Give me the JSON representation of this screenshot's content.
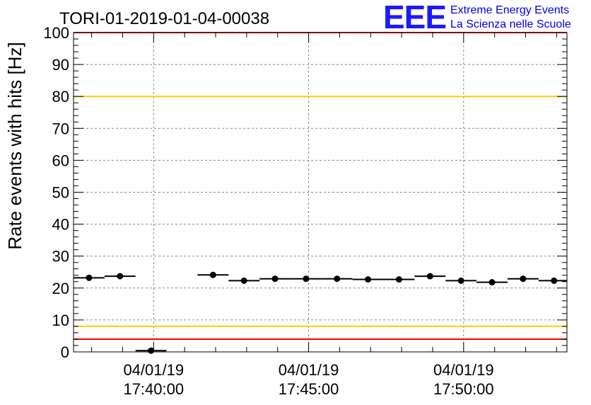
{
  "title": "TORI-01-2019-01-04-00038",
  "logo": {
    "mark": "EEE",
    "line1": "Extreme Energy Events",
    "line2": "La Scienza nelle Scuole",
    "color": "#1a1aff"
  },
  "chart_data": {
    "type": "scatter",
    "title": "TORI-01-2019-01-04-00038",
    "xlabel": "",
    "ylabel": "Rate events with hits [Hz]",
    "ylim": [
      0,
      100
    ],
    "xlim": [
      "17:37:25",
      "17:53:20"
    ],
    "y_ticks": [
      0,
      10,
      20,
      30,
      40,
      50,
      60,
      70,
      80,
      90,
      100
    ],
    "x_ticks": [
      {
        "date": "04/01/19",
        "time": "17:40:00"
      },
      {
        "date": "04/01/19",
        "time": "17:45:00"
      },
      {
        "date": "04/01/19",
        "time": "17:50:00"
      }
    ],
    "grid": true,
    "bin_width_seconds": 60,
    "points": [
      {
        "x": "17:37:55",
        "y": 23.2
      },
      {
        "x": "17:38:55",
        "y": 23.7
      },
      {
        "x": "17:39:55",
        "y": 0.4
      },
      {
        "x": "17:41:55",
        "y": 24.1
      },
      {
        "x": "17:42:55",
        "y": 22.3
      },
      {
        "x": "17:43:55",
        "y": 22.9
      },
      {
        "x": "17:44:55",
        "y": 22.9
      },
      {
        "x": "17:45:55",
        "y": 22.9
      },
      {
        "x": "17:46:55",
        "y": 22.7
      },
      {
        "x": "17:47:55",
        "y": 22.7
      },
      {
        "x": "17:48:55",
        "y": 23.7
      },
      {
        "x": "17:49:55",
        "y": 22.3
      },
      {
        "x": "17:50:55",
        "y": 21.8
      },
      {
        "x": "17:51:55",
        "y": 22.9
      },
      {
        "x": "17:52:55",
        "y": 22.3
      }
    ],
    "reference_lines": [
      {
        "y": 100,
        "color": "#ff0000"
      },
      {
        "y": 80,
        "color": "#ffcc00"
      },
      {
        "y": 8,
        "color": "#ffcc00"
      },
      {
        "y": 4,
        "color": "#ff0000"
      }
    ]
  }
}
